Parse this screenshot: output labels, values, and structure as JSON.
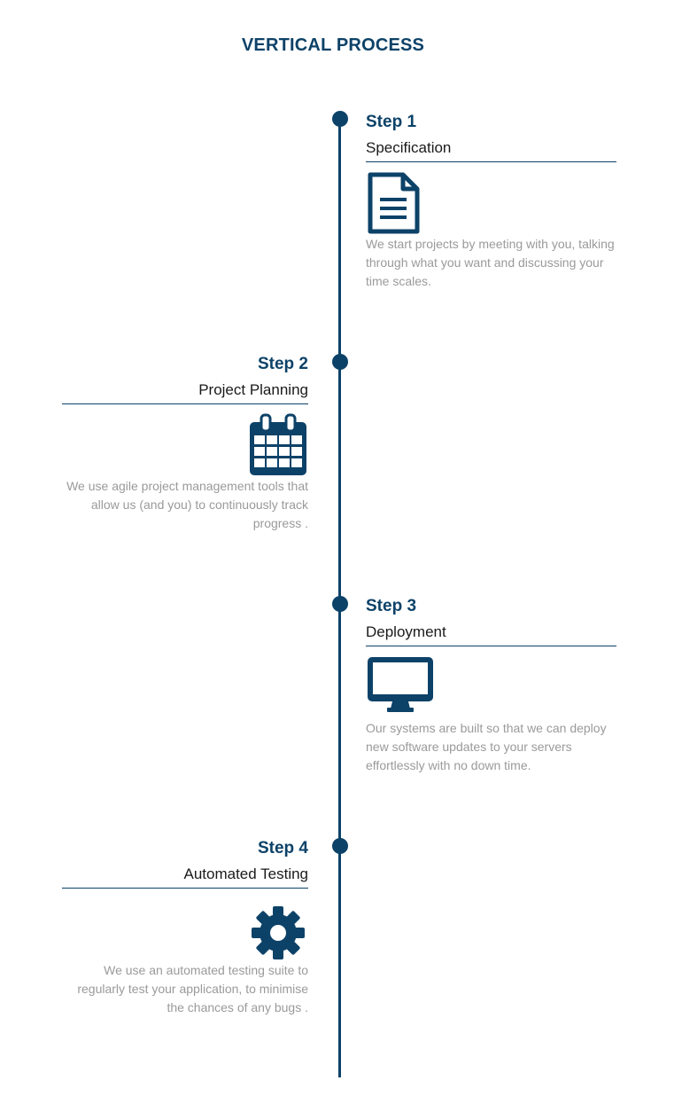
{
  "title": "VERTICAL PROCESS",
  "colors": {
    "accent": "#0d4268",
    "text": "#1a1a1a",
    "muted": "#9a9a9a"
  },
  "steps": [
    {
      "number": "Step 1",
      "name": "Specification",
      "icon": "document-icon",
      "description": "We start projects by meeting with you, talking through what you want and discussing your time scales."
    },
    {
      "number": "Step 2",
      "name": "Project Planning",
      "icon": "calendar-icon",
      "description": "We use agile project management tools that allow us (and you) to continuously track progress ."
    },
    {
      "number": "Step 3",
      "name": "Deployment",
      "icon": "monitor-icon",
      "description": "Our systems are built so that we can deploy new software updates to your servers effortlessly with no down time."
    },
    {
      "number": "Step 4",
      "name": "Automated Testing",
      "icon": "gear-icon",
      "description": "We use an automated testing suite to regularly test your application, to minimise the chances of any bugs ."
    }
  ]
}
